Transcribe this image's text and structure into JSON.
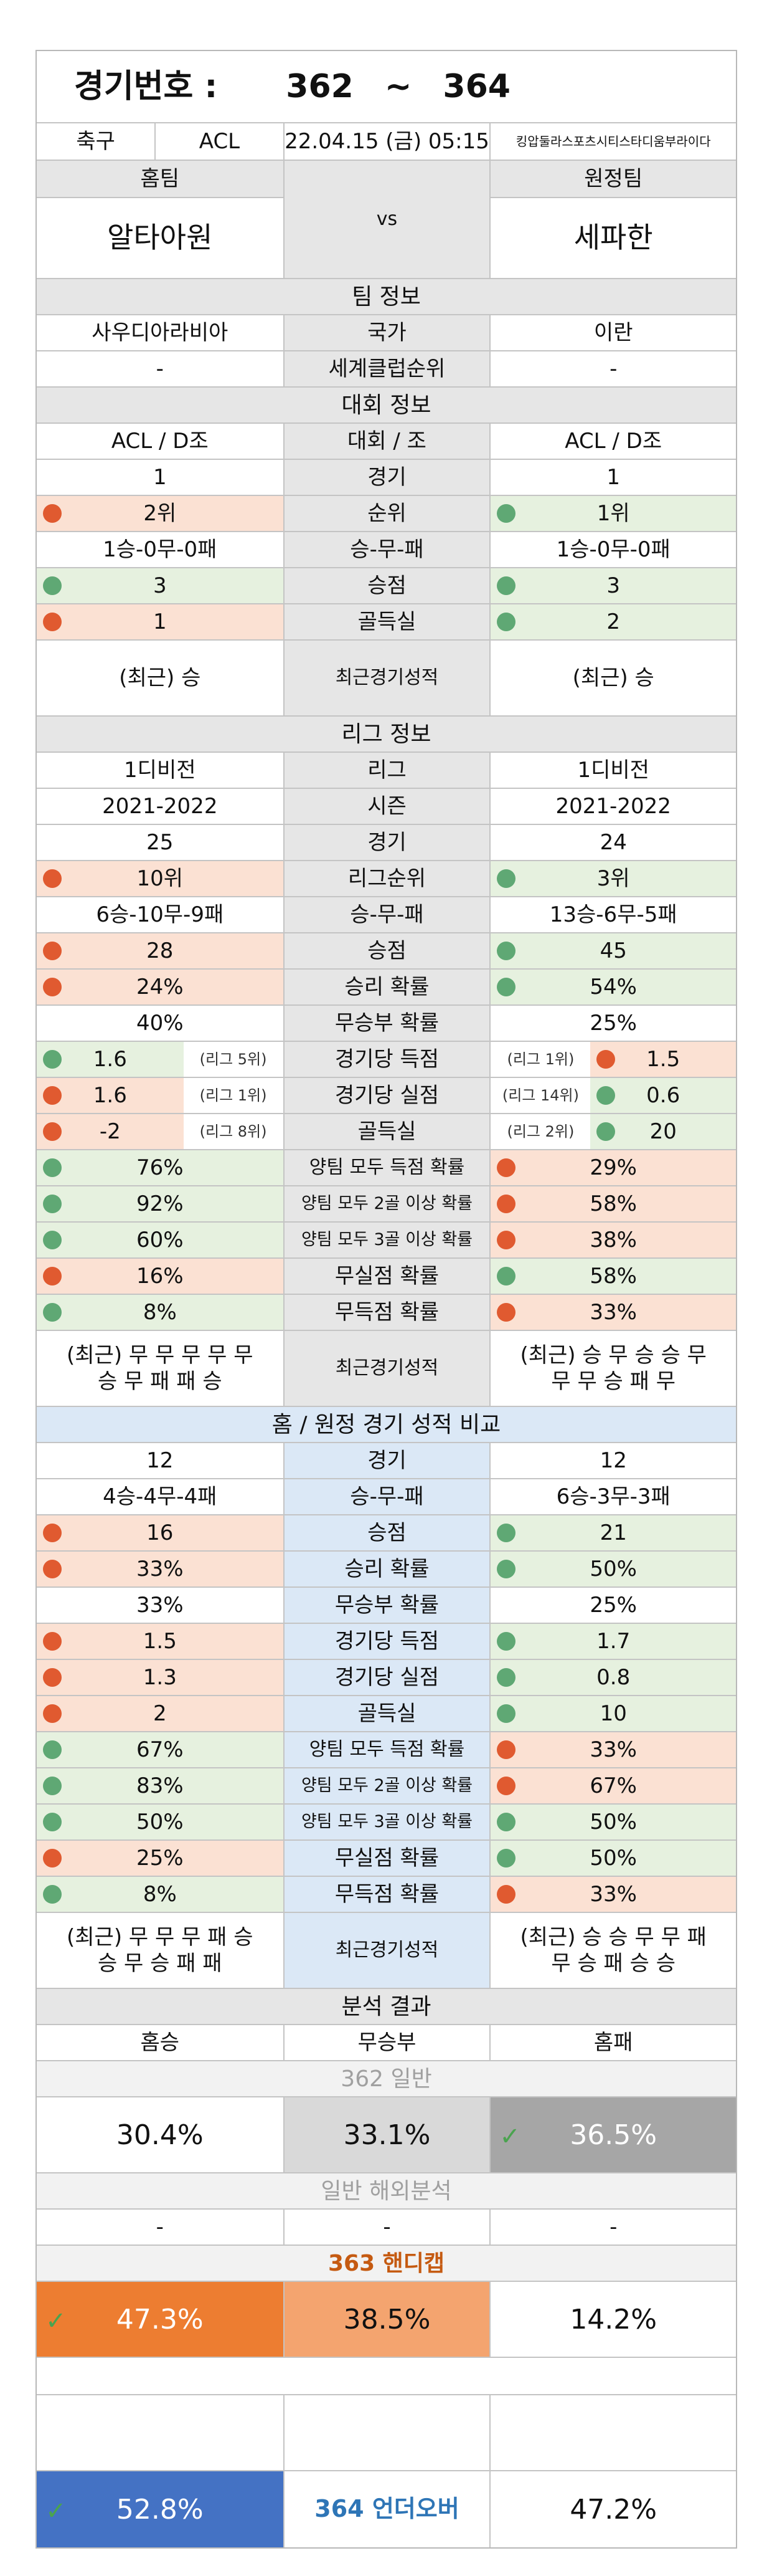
{
  "header": {
    "label": "경기번호 :",
    "from": "362",
    "tilde": "~",
    "to": "364"
  },
  "meta": {
    "sport": "축구",
    "league": "ACL",
    "datetime": "22.04.15 (금) 05:15",
    "venue": "킹압둘라스포츠시티스타디움부라이다"
  },
  "teams": {
    "home_label": "홈팀",
    "away_label": "원정팀",
    "home": "알타아원",
    "vs": "vs",
    "away": "세파한"
  },
  "team_info": {
    "title": "팀 정보",
    "rows": [
      {
        "l": "사우디아라비아",
        "m": "국가",
        "r": "이란"
      },
      {
        "l": "-",
        "m": "세계클럽순위",
        "r": "-"
      }
    ]
  },
  "tournament": {
    "title": "대회 정보",
    "rows": [
      {
        "l": "ACL / D조",
        "m": "대회 / 조",
        "r": "ACL / D조"
      },
      {
        "l": "1",
        "m": "경기",
        "r": "1"
      },
      {
        "l": "2위",
        "m": "순위",
        "r": "1위"
      },
      {
        "l": "1승-0무-0패",
        "m": "승-무-패",
        "r": "1승-0무-0패"
      },
      {
        "l": "3",
        "m": "승점",
        "r": "3"
      },
      {
        "l": "1",
        "m": "골득실",
        "r": "2"
      },
      {
        "l": "(최근) 승",
        "m": "최근경기성적",
        "r": "(최근) 승"
      }
    ]
  },
  "league": {
    "title": "리그 정보",
    "rows": [
      {
        "l": "1디비전",
        "m": "리그",
        "r": "1디비전"
      },
      {
        "l": "2021-2022",
        "m": "시즌",
        "r": "2021-2022"
      },
      {
        "l": "25",
        "m": "경기",
        "r": "24"
      },
      {
        "l": "10위",
        "m": "리그순위",
        "r": "3위"
      },
      {
        "l": "6승-10무-9패",
        "m": "승-무-패",
        "r": "13승-6무-5패"
      },
      {
        "l": "28",
        "m": "승점",
        "r": "45"
      },
      {
        "l": "24%",
        "m": "승리 확률",
        "r": "54%"
      },
      {
        "l": "40%",
        "m": "무승부 확률",
        "r": "25%"
      },
      {
        "l": "1.6",
        "lt": "(리그 5위)",
        "m": "경기당 득점",
        "rt": "(리그 1위)",
        "r": "1.5"
      },
      {
        "l": "1.6",
        "lt": "(리그 1위)",
        "m": "경기당 실점",
        "rt": "(리그 14위)",
        "r": "0.6"
      },
      {
        "l": "-2",
        "lt": "(리그 8위)",
        "m": "골득실",
        "rt": "(리그 2위)",
        "r": "20"
      },
      {
        "l": "76%",
        "m": "양팀 모두 득점 확률",
        "r": "29%"
      },
      {
        "l": "92%",
        "m": "양팀 모두 2골 이상 확률",
        "r": "58%"
      },
      {
        "l": "60%",
        "m": "양팀 모두 3골 이상 확률",
        "r": "38%"
      },
      {
        "l": "16%",
        "m": "무실점 확률",
        "r": "58%"
      },
      {
        "l": "8%",
        "m": "무득점 확률",
        "r": "33%"
      },
      {
        "l1": "(최근) 무 무 무 무 무",
        "l2": "승 무 패 패 승",
        "m": "최근경기성적",
        "r1": "(최근) 승 무 승 승 무",
        "r2": "무 무 승 패 무"
      }
    ]
  },
  "compare": {
    "title": "홈 / 원정 경기 성적 비교",
    "rows": [
      {
        "l": "12",
        "m": "경기",
        "r": "12"
      },
      {
        "l": "4승-4무-4패",
        "m": "승-무-패",
        "r": "6승-3무-3패"
      },
      {
        "l": "16",
        "m": "승점",
        "r": "21"
      },
      {
        "l": "33%",
        "m": "승리 확률",
        "r": "50%"
      },
      {
        "l": "33%",
        "m": "무승부 확률",
        "r": "25%"
      },
      {
        "l": "1.5",
        "m": "경기당 득점",
        "r": "1.7"
      },
      {
        "l": "1.3",
        "m": "경기당 실점",
        "r": "0.8"
      },
      {
        "l": "2",
        "m": "골득실",
        "r": "10"
      },
      {
        "l": "67%",
        "m": "양팀 모두 득점 확률",
        "r": "33%"
      },
      {
        "l": "83%",
        "m": "양팀 모두 2골 이상 확률",
        "r": "67%"
      },
      {
        "l": "50%",
        "m": "양팀 모두 3골 이상 확률",
        "r": "50%"
      },
      {
        "l": "25%",
        "m": "무실점 확률",
        "r": "50%"
      },
      {
        "l": "8%",
        "m": "무득점 확률",
        "r": "33%"
      },
      {
        "l1": "(최근) 무 무 무 패 승",
        "l2": "승 무 승 패 패",
        "m": "최근경기성적",
        "r1": "(최근) 승 승 무 무 패",
        "r2": "무 승 패 승 승"
      }
    ]
  },
  "analysis": {
    "title": "분석 결과",
    "home_win": "홈승",
    "draw": "무승부",
    "home_loss": "홈패",
    "general_title": "362 일반",
    "general": {
      "home": "30.4%",
      "draw": "33.1%",
      "loss": "36.5%"
    },
    "overseas_title": "일반 해외분석",
    "overseas": {
      "home": "-",
      "draw": "-",
      "loss": "-"
    },
    "handicap_title": "363 핸디캡",
    "handicap": {
      "home": "47.3%",
      "draw": "38.5%",
      "loss": "14.2%"
    },
    "underover": {
      "under": "52.8%",
      "label": "364 언더오버",
      "over": "47.2%"
    }
  },
  "icons": {
    "check": "check-icon",
    "dot_red": "status-dot-red",
    "dot_green": "status-dot-green"
  },
  "colors": {
    "peach": "#fbe1d3",
    "green": "#e6f1df",
    "orange": "#ed7d31",
    "light_orange": "#f4a46f",
    "blue": "#4472c4",
    "grey": "#a6a6a6",
    "title_orange": "#c55a11",
    "title_blue": "#2e75b6"
  }
}
